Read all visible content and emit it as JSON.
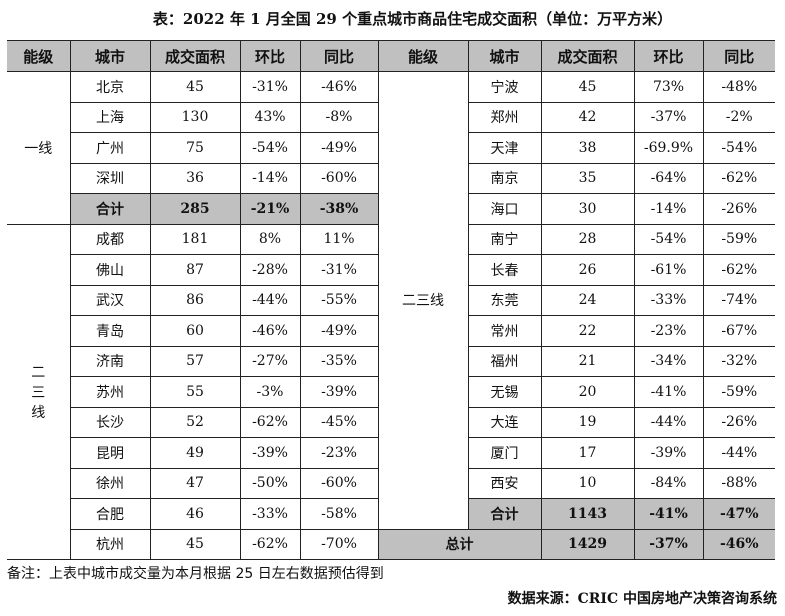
{
  "title": "表：2022 年 1 月全国 29 个重点城市商品住宅成交面积（单位：万平方米）",
  "headers": [
    "能级",
    "城市",
    "成交面积",
    "环比",
    "同比"
  ],
  "tier1": {
    "label": "一线",
    "rows": [
      [
        "北京",
        "45",
        "-31%",
        "-46%"
      ],
      [
        "上海",
        "130",
        "43%",
        "-8%"
      ],
      [
        "广州",
        "75",
        "-54%",
        "-49%"
      ],
      [
        "深圳",
        "36",
        "-14%",
        "-60%"
      ]
    ],
    "total": [
      "合计",
      "285",
      "-21%",
      "-38%"
    ]
  },
  "tier23_left": {
    "label": "二三线",
    "rows": [
      [
        "成都",
        "181",
        "8%",
        "11%"
      ],
      [
        "佛山",
        "87",
        "-28%",
        "-31%"
      ],
      [
        "武汉",
        "86",
        "-44%",
        "-55%"
      ],
      [
        "青岛",
        "60",
        "-46%",
        "-49%"
      ],
      [
        "济南",
        "57",
        "-27%",
        "-35%"
      ],
      [
        "苏州",
        "55",
        "-3%",
        "-39%"
      ],
      [
        "长沙",
        "52",
        "-62%",
        "-45%"
      ],
      [
        "昆明",
        "49",
        "-39%",
        "-23%"
      ],
      [
        "徐州",
        "47",
        "-50%",
        "-60%"
      ],
      [
        "合肥",
        "46",
        "-33%",
        "-58%"
      ],
      [
        "杭州",
        "45",
        "-62%",
        "-70%"
      ]
    ]
  },
  "tier23_right": {
    "label": "二三线",
    "rows": [
      [
        "宁波",
        "45",
        "73%",
        "-48%"
      ],
      [
        "郑州",
        "42",
        "-37%",
        "-2%"
      ],
      [
        "天津",
        "38",
        "-69.9%",
        "-54%"
      ],
      [
        "南京",
        "35",
        "-64%",
        "-62%"
      ],
      [
        "海口",
        "30",
        "-14%",
        "-26%"
      ],
      [
        "南宁",
        "28",
        "-54%",
        "-59%"
      ],
      [
        "长春",
        "26",
        "-61%",
        "-62%"
      ],
      [
        "东莞",
        "24",
        "-33%",
        "-74%"
      ],
      [
        "常州",
        "22",
        "-23%",
        "-67%"
      ],
      [
        "福州",
        "21",
        "-34%",
        "-32%"
      ],
      [
        "无锡",
        "20",
        "-41%",
        "-59%"
      ],
      [
        "大连",
        "19",
        "-44%",
        "-26%"
      ],
      [
        "厦门",
        "17",
        "-39%",
        "-44%"
      ],
      [
        "西安",
        "10",
        "-84%",
        "-88%"
      ]
    ],
    "total": [
      "合计",
      "1143",
      "-41%",
      "-47%"
    ]
  },
  "grand_total": [
    "总计",
    "1429",
    "-37%",
    "-46%"
  ],
  "note": "备注：上表中城市成交量为本月根据 25 日左右数据预估得到",
  "source": "数据来源：CRIC 中国房地产决策咨询系统",
  "colors": {
    "header_bg": "#c0c0c0",
    "total_bg": "#c0c0c0"
  }
}
